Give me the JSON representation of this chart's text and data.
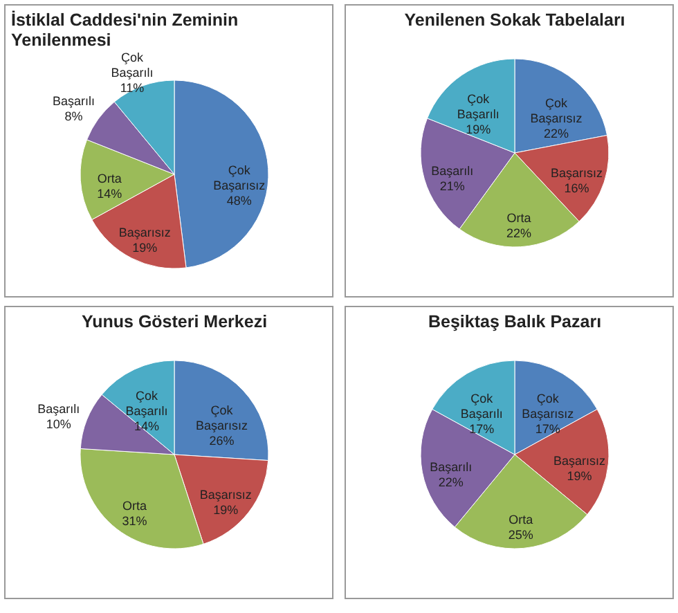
{
  "chart_data": [
    {
      "type": "pie",
      "title": "İstiklal Caddesi'nin Zeminin Yenilenmesi",
      "categories": [
        "Çok Başarısız",
        "Başarısız",
        "Orta",
        "Başarılı",
        "Çok Başarılı"
      ],
      "values": [
        48,
        19,
        14,
        8,
        11
      ],
      "value_labels": [
        "48%",
        "19%",
        "14%",
        "8%",
        "11%"
      ],
      "colors": [
        "#4f81bd",
        "#c0504d",
        "#9bbb59",
        "#8064a2",
        "#4bacc6"
      ],
      "legend": false
    },
    {
      "type": "pie",
      "title": "Yenilenen Sokak Tabelaları",
      "categories": [
        "Çok Başarısız",
        "Başarısız",
        "Orta",
        "Başarılı",
        "Çok Başarılı"
      ],
      "values": [
        22,
        16,
        22,
        21,
        19
      ],
      "value_labels": [
        "22%",
        "16%",
        "22%",
        "21%",
        "19%"
      ],
      "colors": [
        "#4f81bd",
        "#c0504d",
        "#9bbb59",
        "#8064a2",
        "#4bacc6"
      ],
      "legend": false
    },
    {
      "type": "pie",
      "title": "Yunus Gösteri Merkezi",
      "categories": [
        "Çok Başarısız",
        "Başarısız",
        "Orta",
        "Başarılı",
        "Çok Başarılı"
      ],
      "values": [
        26,
        19,
        31,
        10,
        14
      ],
      "value_labels": [
        "26%",
        "19%",
        "31%",
        "10%",
        "14%"
      ],
      "colors": [
        "#4f81bd",
        "#c0504d",
        "#9bbb59",
        "#8064a2",
        "#4bacc6"
      ],
      "legend": false
    },
    {
      "type": "pie",
      "title": "Beşiktaş Balık Pazarı",
      "categories": [
        "Çok Başarısız",
        "Başarısız",
        "Orta",
        "Başarılı",
        "Çok Başarılı"
      ],
      "values": [
        17,
        19,
        25,
        22,
        17
      ],
      "value_labels": [
        "17%",
        "19%",
        "25%",
        "22%",
        "17%"
      ],
      "colors": [
        "#4f81bd",
        "#c0504d",
        "#9bbb59",
        "#8064a2",
        "#4bacc6"
      ],
      "legend": false
    }
  ]
}
